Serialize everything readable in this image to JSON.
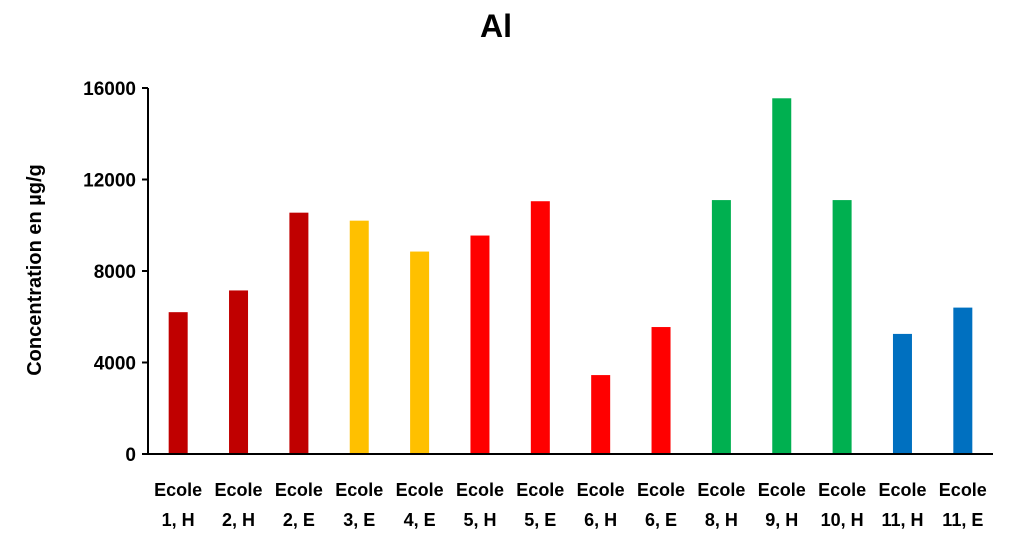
{
  "chart_data": {
    "type": "bar",
    "title": "Al",
    "xlabel": "",
    "ylabel": "Concentration en µg/g",
    "ylim": [
      0,
      16000
    ],
    "yticks": [
      0,
      4000,
      8000,
      12000,
      16000
    ],
    "grid": false,
    "legend": "none",
    "categories": [
      [
        "Ecole",
        "1, H"
      ],
      [
        "Ecole",
        "2, H"
      ],
      [
        "Ecole",
        "2, E"
      ],
      [
        "Ecole",
        "3, E"
      ],
      [
        "Ecole",
        "4, E"
      ],
      [
        "Ecole",
        "5, H"
      ],
      [
        "Ecole",
        "5, E"
      ],
      [
        "Ecole",
        "6, H"
      ],
      [
        "Ecole",
        "6, E"
      ],
      [
        "Ecole",
        "8, H"
      ],
      [
        "Ecole",
        "9, H"
      ],
      [
        "Ecole",
        "10, H"
      ],
      [
        "Ecole",
        "11, H"
      ],
      [
        "Ecole",
        "11, E"
      ]
    ],
    "values": [
      6200,
      7150,
      10550,
      10200,
      8850,
      9550,
      11050,
      3450,
      5550,
      11100,
      15550,
      11100,
      5250,
      6400
    ],
    "bar_colors": [
      "#C00000",
      "#C00000",
      "#C00000",
      "#FFC000",
      "#FFC000",
      "#FF0000",
      "#FF0000",
      "#FF0000",
      "#FF0000",
      "#00B050",
      "#00B050",
      "#00B050",
      "#0070C0",
      "#0070C0"
    ]
  }
}
